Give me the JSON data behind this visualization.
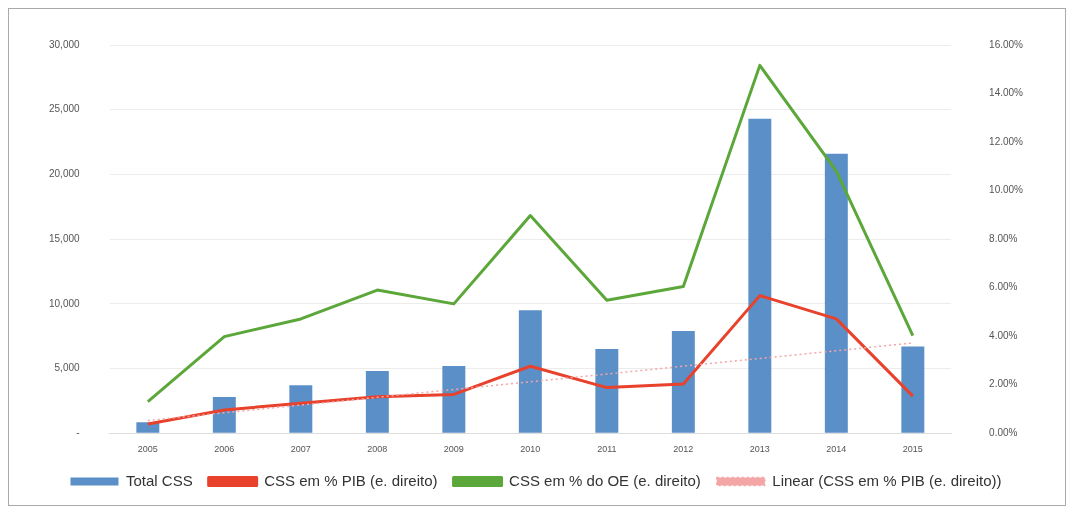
{
  "chart_data": {
    "type": "bar",
    "categories": [
      "2005",
      "2006",
      "2007",
      "2008",
      "2009",
      "2010",
      "2011",
      "2012",
      "2013",
      "2014",
      "2015"
    ],
    "series": [
      {
        "name": "Total CSS",
        "color": "#5b8fc7",
        "values": [
          850,
          2800,
          3700,
          4800,
          5200,
          9500,
          6500,
          7900,
          24300,
          21600,
          6700
        ]
      },
      {
        "name": "CSS em % PIB (e. direito)",
        "type": "line",
        "axis": "y2",
        "color": "#e8412c",
        "values": [
          0.38,
          0.96,
          1.23,
          1.5,
          1.6,
          2.76,
          1.88,
          2.03,
          5.67,
          4.71,
          1.53
        ]
      },
      {
        "name": "CSS em % do OE (e. direito)",
        "type": "line",
        "axis": "y2",
        "color": "#5ca73a",
        "values": [
          1.3,
          3.98,
          4.71,
          5.9,
          5.33,
          8.97,
          5.48,
          6.05,
          15.16,
          10.8,
          4.02
        ]
      },
      {
        "name": "Linear (CSS em % PIB (e. direito))",
        "type": "line",
        "axis": "y2",
        "color": "#f4a6a6",
        "line_style": "dotted",
        "values": [
          0.52,
          0.84,
          1.16,
          1.48,
          1.8,
          2.12,
          2.44,
          2.76,
          3.08,
          3.4,
          3.72
        ]
      }
    ],
    "ylim": [
      0,
      30000
    ],
    "yticks": [
      {
        "value": 0,
        "label": "-"
      },
      {
        "value": 5000,
        "label": "5,000"
      },
      {
        "value": 10000,
        "label": "10,000"
      },
      {
        "value": 15000,
        "label": "15,000"
      },
      {
        "value": 20000,
        "label": "20,000"
      },
      {
        "value": 25000,
        "label": "25,000"
      },
      {
        "value": 30000,
        "label": "30,000"
      }
    ],
    "y2lim": [
      0,
      16
    ],
    "y2ticks": [
      {
        "value": 0,
        "label": "0.00%"
      },
      {
        "value": 2,
        "label": "2.00%"
      },
      {
        "value": 4,
        "label": "4.00%"
      },
      {
        "value": 6,
        "label": "6.00%"
      },
      {
        "value": 8,
        "label": "8.00%"
      },
      {
        "value": 10,
        "label": "10.00%"
      },
      {
        "value": 12,
        "label": "12.00%"
      },
      {
        "value": 14,
        "label": "14.00%"
      },
      {
        "value": 16,
        "label": "16.00%"
      }
    ],
    "grid": "y",
    "legend": "bottom",
    "marker": "none"
  }
}
